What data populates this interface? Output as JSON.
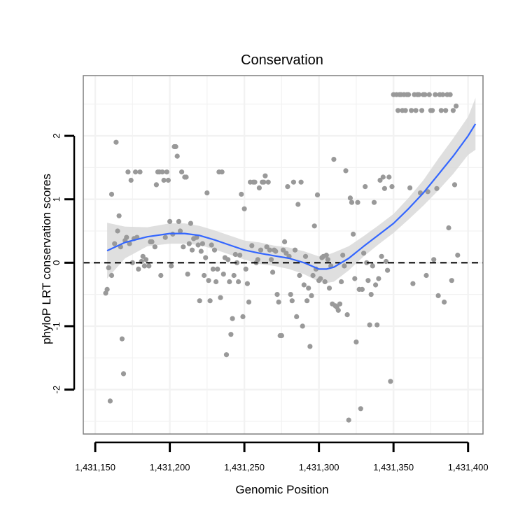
{
  "chart_data": {
    "type": "scatter",
    "title": "Conservation",
    "xlabel": "Genomic Position",
    "ylabel": "phyloP LRT conservation scores",
    "xlim": [
      1431142,
      1431410
    ],
    "ylim": [
      -2.7,
      2.95
    ],
    "x_ticks": [
      {
        "value": 1431150,
        "label": "1,431,150"
      },
      {
        "value": 1431200,
        "label": "1,431,200"
      },
      {
        "value": 1431250,
        "label": "1,431,250"
      },
      {
        "value": 1431300,
        "label": "1,431,300"
      },
      {
        "value": 1431350,
        "label": "1,431,350"
      },
      {
        "value": 1431400,
        "label": "1,431,400"
      }
    ],
    "y_ticks": [
      {
        "value": -2,
        "label": "-2"
      },
      {
        "value": -1,
        "label": "-1"
      },
      {
        "value": 0,
        "label": "0"
      },
      {
        "value": 1,
        "label": "1"
      },
      {
        "value": 2,
        "label": "2"
      }
    ],
    "reference_line": {
      "y": 0,
      "style": "dashed"
    },
    "grid": true,
    "colors": {
      "points": "#999999",
      "smooth_line": "#3366ff",
      "confidence_band": "#d9d9d9",
      "grid": "#f2f2f2",
      "panel_border": "#7f7f7f",
      "axis": "#000000"
    },
    "points": [
      [
        1431157,
        -0.48
      ],
      [
        1431158,
        -0.42
      ],
      [
        1431159,
        -0.08
      ],
      [
        1431160,
        -2.18
      ],
      [
        1431161,
        1.08
      ],
      [
        1431161,
        -0.2
      ],
      [
        1431163,
        0.3
      ],
      [
        1431164,
        1.9
      ],
      [
        1431165,
        0.5
      ],
      [
        1431166,
        0.74
      ],
      [
        1431167,
        0.25
      ],
      [
        1431168,
        -1.2
      ],
      [
        1431169,
        -1.75
      ],
      [
        1431170,
        0.35
      ],
      [
        1431171,
        0.4
      ],
      [
        1431172,
        1.43
      ],
      [
        1431173,
        0.3
      ],
      [
        1431174,
        1.3
      ],
      [
        1431175,
        0.0
      ],
      [
        1431176,
        0.38
      ],
      [
        1431177,
        1.43
      ],
      [
        1431178,
        0.4
      ],
      [
        1431179,
        -0.1
      ],
      [
        1431180,
        1.43
      ],
      [
        1431181,
        0.02
      ],
      [
        1431182,
        0.1
      ],
      [
        1431183,
        -0.05
      ],
      [
        1431184,
        0.05
      ],
      [
        1431186,
        -0.05
      ],
      [
        1431187,
        0.33
      ],
      [
        1431188,
        0.33
      ],
      [
        1431190,
        0.25
      ],
      [
        1431191,
        1.23
      ],
      [
        1431192,
        1.43
      ],
      [
        1431193,
        1.43
      ],
      [
        1431194,
        -0.2
      ],
      [
        1431195,
        1.43
      ],
      [
        1431196,
        1.3
      ],
      [
        1431197,
        0.4
      ],
      [
        1431198,
        1.43
      ],
      [
        1431199,
        1.3
      ],
      [
        1431200,
        0.65
      ],
      [
        1431201,
        -0.05
      ],
      [
        1431202,
        0.45
      ],
      [
        1431203,
        1.83
      ],
      [
        1431204,
        1.83
      ],
      [
        1431205,
        1.68
      ],
      [
        1431206,
        0.65
      ],
      [
        1431207,
        0.5
      ],
      [
        1431208,
        1.43
      ],
      [
        1431209,
        0.25
      ],
      [
        1431210,
        1.35
      ],
      [
        1431211,
        1.35
      ],
      [
        1431212,
        -0.18
      ],
      [
        1431213,
        0.3
      ],
      [
        1431214,
        0.62
      ],
      [
        1431215,
        0.2
      ],
      [
        1431216,
        0.38
      ],
      [
        1431218,
        0.4
      ],
      [
        1431219,
        0.28
      ],
      [
        1431220,
        -0.6
      ],
      [
        1431221,
        0.18
      ],
      [
        1431222,
        0.3
      ],
      [
        1431223,
        -0.2
      ],
      [
        1431224,
        0.08
      ],
      [
        1431225,
        1.1
      ],
      [
        1431226,
        -0.28
      ],
      [
        1431227,
        -0.6
      ],
      [
        1431228,
        0.28
      ],
      [
        1431229,
        -0.1
      ],
      [
        1431230,
        0.2
      ],
      [
        1431231,
        -0.3
      ],
      [
        1431232,
        -0.1
      ],
      [
        1431233,
        1.43
      ],
      [
        1431234,
        -0.55
      ],
      [
        1431235,
        1.43
      ],
      [
        1431236,
        -0.18
      ],
      [
        1431237,
        0.08
      ],
      [
        1431238,
        -1.45
      ],
      [
        1431239,
        0.05
      ],
      [
        1431240,
        -0.3
      ],
      [
        1431241,
        -1.13
      ],
      [
        1431242,
        -0.88
      ],
      [
        1431243,
        -0.2
      ],
      [
        1431244,
        0.13
      ],
      [
        1431245,
        0.0
      ],
      [
        1431246,
        -0.3
      ],
      [
        1431247,
        0.12
      ],
      [
        1431248,
        1.08
      ],
      [
        1431249,
        -0.85
      ],
      [
        1431250,
        0.85
      ],
      [
        1431251,
        -0.1
      ],
      [
        1431252,
        -0.33
      ],
      [
        1431253,
        -0.62
      ],
      [
        1431254,
        1.27
      ],
      [
        1431255,
        0.27
      ],
      [
        1431256,
        1.27
      ],
      [
        1431257,
        1.27
      ],
      [
        1431258,
        0.0
      ],
      [
        1431259,
        0.05
      ],
      [
        1431260,
        1.18
      ],
      [
        1431261,
        0.2
      ],
      [
        1431262,
        1.27
      ],
      [
        1431263,
        1.27
      ],
      [
        1431264,
        1.37
      ],
      [
        1431265,
        0.25
      ],
      [
        1431266,
        1.27
      ],
      [
        1431267,
        0.2
      ],
      [
        1431268,
        0.05
      ],
      [
        1431269,
        -0.15
      ],
      [
        1431270,
        0.2
      ],
      [
        1431271,
        0.18
      ],
      [
        1431272,
        -0.5
      ],
      [
        1431273,
        -0.62
      ],
      [
        1431274,
        -1.15
      ],
      [
        1431275,
        -1.15
      ],
      [
        1431276,
        0.2
      ],
      [
        1431277,
        0.33
      ],
      [
        1431278,
        0.15
      ],
      [
        1431279,
        1.2
      ],
      [
        1431280,
        0.1
      ],
      [
        1431281,
        -0.5
      ],
      [
        1431282,
        -0.6
      ],
      [
        1431283,
        1.27
      ],
      [
        1431284,
        0.2
      ],
      [
        1431285,
        -0.85
      ],
      [
        1431286,
        0.92
      ],
      [
        1431287,
        -0.2
      ],
      [
        1431288,
        1.27
      ],
      [
        1431289,
        -1.0
      ],
      [
        1431290,
        -0.35
      ],
      [
        1431291,
        0.1
      ],
      [
        1431292,
        -0.6
      ],
      [
        1431293,
        -0.4
      ],
      [
        1431294,
        -1.32
      ],
      [
        1431295,
        -0.52
      ],
      [
        1431296,
        -0.2
      ],
      [
        1431297,
        0.58
      ],
      [
        1431298,
        -0.1
      ],
      [
        1431299,
        1.07
      ],
      [
        1431300,
        -0.28
      ],
      [
        1431301,
        -0.25
      ],
      [
        1431302,
        0.08
      ],
      [
        1431303,
        0.1
      ],
      [
        1431304,
        -0.3
      ],
      [
        1431305,
        0.12
      ],
      [
        1431306,
        0.05
      ],
      [
        1431307,
        -0.4
      ],
      [
        1431308,
        -0.05
      ],
      [
        1431309,
        -0.65
      ],
      [
        1431310,
        1.63
      ],
      [
        1431311,
        -0.68
      ],
      [
        1431312,
        -0.7
      ],
      [
        1431313,
        -0.75
      ],
      [
        1431314,
        -0.65
      ],
      [
        1431315,
        -0.3
      ],
      [
        1431316,
        0.12
      ],
      [
        1431317,
        -0.05
      ],
      [
        1431318,
        1.45
      ],
      [
        1431319,
        -0.82
      ],
      [
        1431320,
        -2.48
      ],
      [
        1431321,
        1.02
      ],
      [
        1431322,
        0.95
      ],
      [
        1431323,
        0.45
      ],
      [
        1431324,
        -0.25
      ],
      [
        1431325,
        -1.25
      ],
      [
        1431326,
        0.95
      ],
      [
        1431327,
        -0.42
      ],
      [
        1431328,
        -2.3
      ],
      [
        1431329,
        -0.42
      ],
      [
        1431330,
        0.15
      ],
      [
        1431331,
        1.2
      ],
      [
        1431332,
        0.0
      ],
      [
        1431333,
        -0.28
      ],
      [
        1431334,
        -0.98
      ],
      [
        1431335,
        -0.5
      ],
      [
        1431336,
        -0.05
      ],
      [
        1431337,
        0.95
      ],
      [
        1431338,
        -0.35
      ],
      [
        1431339,
        -0.98
      ],
      [
        1431340,
        -0.25
      ],
      [
        1431341,
        1.3
      ],
      [
        1431342,
        0.1
      ],
      [
        1431343,
        1.35
      ],
      [
        1431344,
        1.17
      ],
      [
        1431345,
        0.02
      ],
      [
        1431346,
        -0.12
      ],
      [
        1431347,
        1.35
      ],
      [
        1431348,
        -1.87
      ],
      [
        1431349,
        1.2
      ],
      [
        1431350,
        2.65
      ],
      [
        1431352,
        2.65
      ],
      [
        1431353,
        2.4
      ],
      [
        1431354,
        2.65
      ],
      [
        1431355,
        2.65
      ],
      [
        1431356,
        2.4
      ],
      [
        1431357,
        2.65
      ],
      [
        1431358,
        2.4
      ],
      [
        1431359,
        2.65
      ],
      [
        1431360,
        2.65
      ],
      [
        1431361,
        1.18
      ],
      [
        1431362,
        2.4
      ],
      [
        1431363,
        -0.33
      ],
      [
        1431364,
        2.65
      ],
      [
        1431365,
        2.4
      ],
      [
        1431366,
        2.65
      ],
      [
        1431367,
        2.65
      ],
      [
        1431368,
        1.1
      ],
      [
        1431369,
        2.4
      ],
      [
        1431370,
        2.65
      ],
      [
        1431371,
        2.65
      ],
      [
        1431372,
        -0.2
      ],
      [
        1431373,
        1.12
      ],
      [
        1431374,
        2.65
      ],
      [
        1431375,
        2.4
      ],
      [
        1431376,
        2.4
      ],
      [
        1431377,
        0.05
      ],
      [
        1431378,
        2.65
      ],
      [
        1431379,
        1.17
      ],
      [
        1431380,
        -0.52
      ],
      [
        1431381,
        2.65
      ],
      [
        1431382,
        2.4
      ],
      [
        1431383,
        2.65
      ],
      [
        1431384,
        -0.62
      ],
      [
        1431385,
        2.4
      ],
      [
        1431386,
        2.65
      ],
      [
        1431387,
        0.55
      ],
      [
        1431388,
        2.65
      ],
      [
        1431389,
        -0.28
      ],
      [
        1431390,
        2.4
      ],
      [
        1431391,
        1.23
      ],
      [
        1431392,
        2.47
      ],
      [
        1431393,
        0.12
      ]
    ],
    "smooth": {
      "x": [
        1431158,
        1431170,
        1431185,
        1431200,
        1431210,
        1431220,
        1431230,
        1431240,
        1431250,
        1431260,
        1431270,
        1431280,
        1431290,
        1431300,
        1431305,
        1431310,
        1431320,
        1431330,
        1431340,
        1431350,
        1431360,
        1431370,
        1431380,
        1431390,
        1431400,
        1431405
      ],
      "y": [
        0.19,
        0.32,
        0.41,
        0.46,
        0.46,
        0.43,
        0.36,
        0.28,
        0.2,
        0.15,
        0.11,
        0.07,
        0.0,
        -0.1,
        -0.1,
        -0.07,
        0.07,
        0.26,
        0.44,
        0.62,
        0.85,
        1.1,
        1.39,
        1.68,
        2.0,
        2.19
      ],
      "lower": [
        -0.25,
        0.07,
        0.26,
        0.3,
        0.3,
        0.28,
        0.21,
        0.13,
        0.05,
        -0.02,
        -0.05,
        -0.1,
        -0.18,
        -0.3,
        -0.32,
        -0.3,
        -0.12,
        0.1,
        0.29,
        0.47,
        0.68,
        0.9,
        1.14,
        1.4,
        1.7,
        1.78
      ],
      "upper": [
        0.63,
        0.57,
        0.56,
        0.62,
        0.62,
        0.58,
        0.51,
        0.43,
        0.35,
        0.32,
        0.27,
        0.24,
        0.18,
        0.1,
        0.12,
        0.16,
        0.26,
        0.42,
        0.59,
        0.77,
        1.02,
        1.3,
        1.64,
        1.96,
        2.3,
        2.6
      ]
    }
  }
}
